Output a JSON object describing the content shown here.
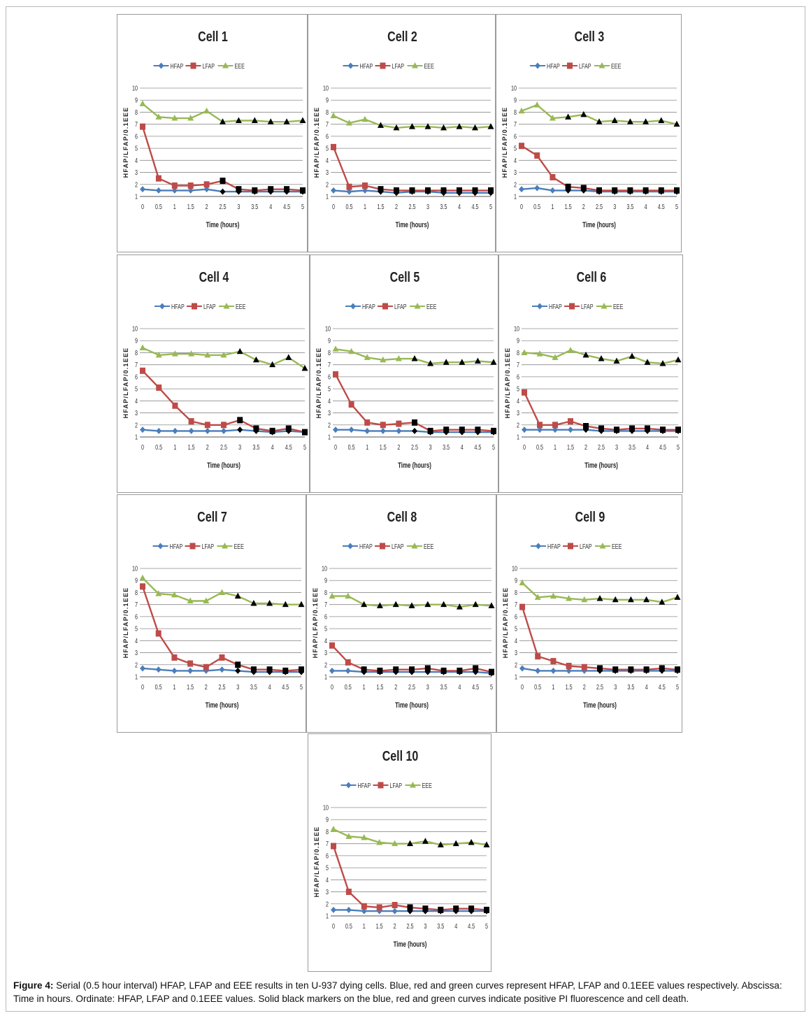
{
  "figure": {
    "caption_label": "Figure 4:",
    "caption_text": " Serial (0.5 hour interval) HFAP, LFAP and EEE results in ten U-937 dying cells. Blue, red and green curves represent HFAP, LFAP and 0.1EEE values respectively. Abscissa: Time in hours. Ordinate: HFAP, LFAP and 0.1EEE values. Solid black markers on the blue, red and green curves indicate positive PI fluorescence and cell death."
  },
  "colors": {
    "hfap": "#4a7ebb",
    "lfap": "#be4b48",
    "eee": "#98b954",
    "death": "#000000",
    "grid": "#8c8c8c"
  },
  "chart_data": [
    {
      "type": "line",
      "title": "Cell 1",
      "xlabel": "Time (hours)",
      "ylabel": "HFAP/LFAP/0.1EEE",
      "x": [
        "0",
        "0.5",
        "1",
        "1.5",
        "2",
        "2.5",
        "3",
        "3.5",
        "4",
        "4.5",
        "5"
      ],
      "ylim": [
        1,
        10
      ],
      "y_ticks": [
        "1",
        "2",
        "3",
        "4",
        "5",
        "6",
        "7",
        "8",
        "9",
        "10"
      ],
      "series": [
        {
          "name": "HFAP",
          "values": [
            1.6,
            1.5,
            1.5,
            1.5,
            1.6,
            1.4,
            1.4,
            1.4,
            1.4,
            1.4,
            1.4
          ]
        },
        {
          "name": "LFAP",
          "values": [
            6.8,
            2.5,
            1.9,
            1.9,
            2.0,
            2.3,
            1.6,
            1.5,
            1.6,
            1.6,
            1.5
          ]
        },
        {
          "name": "EEE",
          "values": [
            8.7,
            7.6,
            7.5,
            7.5,
            8.1,
            7.2,
            7.3,
            7.3,
            7.2,
            7.2,
            7.3
          ]
        }
      ],
      "death_from_index": 5
    },
    {
      "type": "line",
      "title": "Cell 2",
      "xlabel": "Time (hours)",
      "ylabel": "HFAP/LFAP/0.1EEE",
      "x": [
        "0",
        "0.5",
        "1",
        "1.5",
        "2",
        "2.5",
        "3",
        "3.5",
        "4",
        "4.5",
        "5"
      ],
      "ylim": [
        1,
        10
      ],
      "y_ticks": [
        "1",
        "2",
        "3",
        "4",
        "5",
        "6",
        "7",
        "8",
        "9",
        "10"
      ],
      "series": [
        {
          "name": "HFAP",
          "values": [
            1.5,
            1.4,
            1.5,
            1.4,
            1.3,
            1.4,
            1.4,
            1.3,
            1.3,
            1.3,
            1.3
          ]
        },
        {
          "name": "LFAP",
          "values": [
            5.1,
            1.8,
            1.9,
            1.6,
            1.5,
            1.5,
            1.5,
            1.5,
            1.5,
            1.5,
            1.5
          ]
        },
        {
          "name": "EEE",
          "values": [
            7.7,
            7.1,
            7.4,
            6.9,
            6.7,
            6.8,
            6.8,
            6.7,
            6.8,
            6.7,
            6.8
          ]
        }
      ],
      "death_from_index": 3
    },
    {
      "type": "line",
      "title": "Cell 3",
      "xlabel": "Time (hours)",
      "ylabel": "HFAP/LFAP/0.1EEE",
      "x": [
        "0",
        "0.5",
        "1",
        "1.5",
        "2",
        "2.5",
        "3",
        "3.5",
        "4",
        "4.5",
        "5"
      ],
      "ylim": [
        1,
        10
      ],
      "y_ticks": [
        "1",
        "2",
        "3",
        "4",
        "5",
        "6",
        "7",
        "8",
        "9",
        "10"
      ],
      "series": [
        {
          "name": "HFAP",
          "values": [
            1.6,
            1.7,
            1.5,
            1.5,
            1.5,
            1.4,
            1.4,
            1.4,
            1.4,
            1.4,
            1.4
          ]
        },
        {
          "name": "LFAP",
          "values": [
            5.2,
            4.4,
            2.6,
            1.8,
            1.7,
            1.5,
            1.5,
            1.5,
            1.5,
            1.5,
            1.5
          ]
        },
        {
          "name": "EEE",
          "values": [
            8.1,
            8.6,
            7.5,
            7.6,
            7.8,
            7.2,
            7.3,
            7.2,
            7.2,
            7.3,
            7.0
          ]
        }
      ],
      "death_from_index": 3
    },
    {
      "type": "line",
      "title": "Cell 4",
      "xlabel": "Time (hours)",
      "ylabel": "HFAP/LFAP/0.1EEE",
      "x": [
        "0",
        "0.5",
        "1",
        "1.5",
        "2",
        "2.5",
        "3",
        "3.5",
        "4",
        "4.5",
        "5"
      ],
      "ylim": [
        1,
        10
      ],
      "y_ticks": [
        "1",
        "2",
        "3",
        "4",
        "5",
        "6",
        "7",
        "8",
        "9",
        "10"
      ],
      "series": [
        {
          "name": "HFAP",
          "values": [
            1.6,
            1.5,
            1.5,
            1.5,
            1.5,
            1.5,
            1.6,
            1.5,
            1.4,
            1.5,
            1.4
          ]
        },
        {
          "name": "LFAP",
          "values": [
            6.5,
            5.1,
            3.6,
            2.3,
            2.0,
            2.0,
            2.4,
            1.7,
            1.5,
            1.7,
            1.4
          ]
        },
        {
          "name": "EEE",
          "values": [
            8.4,
            7.8,
            7.9,
            7.9,
            7.8,
            7.8,
            8.1,
            7.4,
            7.0,
            7.6,
            6.7
          ]
        }
      ],
      "death_from_index": 6
    },
    {
      "type": "line",
      "title": "Cell 5",
      "xlabel": "Time (hours)",
      "ylabel": "HFAP/LFAP/0.1EEE",
      "x": [
        "0",
        "0.5",
        "1",
        "1.5",
        "2",
        "2.5",
        "3",
        "3.5",
        "4",
        "4.5",
        "5"
      ],
      "ylim": [
        1,
        10
      ],
      "y_ticks": [
        "1",
        "2",
        "3",
        "4",
        "5",
        "6",
        "7",
        "8",
        "9",
        "10"
      ],
      "series": [
        {
          "name": "HFAP",
          "values": [
            1.6,
            1.6,
            1.5,
            1.5,
            1.5,
            1.5,
            1.4,
            1.4,
            1.4,
            1.4,
            1.4
          ]
        },
        {
          "name": "LFAP",
          "values": [
            6.2,
            3.7,
            2.2,
            2.0,
            2.1,
            2.2,
            1.5,
            1.6,
            1.6,
            1.6,
            1.5
          ]
        },
        {
          "name": "EEE",
          "values": [
            8.3,
            8.1,
            7.6,
            7.4,
            7.5,
            7.5,
            7.1,
            7.2,
            7.2,
            7.3,
            7.2
          ]
        }
      ],
      "death_from_index": 5
    },
    {
      "type": "line",
      "title": "Cell 6",
      "xlabel": "Time (hours)",
      "ylabel": "HFAP/LFAP/0.1EEE",
      "x": [
        "0",
        "0.5",
        "1",
        "1.5",
        "2",
        "2.5",
        "3",
        "3.5",
        "4",
        "4.5",
        "5"
      ],
      "ylim": [
        1,
        10
      ],
      "y_ticks": [
        "1",
        "2",
        "3",
        "4",
        "5",
        "6",
        "7",
        "8",
        "9",
        "10"
      ],
      "series": [
        {
          "name": "HFAP",
          "values": [
            1.6,
            1.6,
            1.6,
            1.6,
            1.6,
            1.5,
            1.5,
            1.5,
            1.5,
            1.5,
            1.5
          ]
        },
        {
          "name": "LFAP",
          "values": [
            4.7,
            2.0,
            2.0,
            2.3,
            1.9,
            1.7,
            1.6,
            1.7,
            1.7,
            1.6,
            1.6
          ]
        },
        {
          "name": "EEE",
          "values": [
            8.0,
            7.9,
            7.6,
            8.2,
            7.8,
            7.5,
            7.3,
            7.7,
            7.2,
            7.1,
            7.4
          ]
        }
      ],
      "death_from_index": 4
    },
    {
      "type": "line",
      "title": "Cell 7",
      "xlabel": "Time (hours)",
      "ylabel": "HFAP/LFAP/0.1EEE",
      "x": [
        "0",
        "0.5",
        "1",
        "1.5",
        "2",
        "2.5",
        "3",
        "3.5",
        "4",
        "4.5",
        "5"
      ],
      "ylim": [
        1,
        10
      ],
      "y_ticks": [
        "1",
        "2",
        "3",
        "4",
        "5",
        "6",
        "7",
        "8",
        "9",
        "10"
      ],
      "series": [
        {
          "name": "HFAP",
          "values": [
            1.7,
            1.6,
            1.5,
            1.5,
            1.5,
            1.6,
            1.5,
            1.4,
            1.4,
            1.4,
            1.4
          ]
        },
        {
          "name": "LFAP",
          "values": [
            8.5,
            4.6,
            2.6,
            2.1,
            1.8,
            2.6,
            2.0,
            1.6,
            1.6,
            1.5,
            1.6
          ]
        },
        {
          "name": "EEE",
          "values": [
            9.2,
            7.9,
            7.8,
            7.3,
            7.3,
            8.0,
            7.7,
            7.1,
            7.1,
            7.0,
            7.0
          ]
        }
      ],
      "death_from_index": 6
    },
    {
      "type": "line",
      "title": "Cell 8",
      "xlabel": "Time (hours)",
      "ylabel": "HFAP/LFAP/0.1EEE",
      "x": [
        "0",
        "0.5",
        "1",
        "1.5",
        "2",
        "2.5",
        "3",
        "3.5",
        "4",
        "4.5",
        "5"
      ],
      "ylim": [
        1,
        10
      ],
      "y_ticks": [
        "1",
        "2",
        "3",
        "4",
        "5",
        "6",
        "7",
        "8",
        "9",
        "10"
      ],
      "series": [
        {
          "name": "HFAP",
          "values": [
            1.5,
            1.5,
            1.4,
            1.4,
            1.4,
            1.4,
            1.4,
            1.4,
            1.4,
            1.4,
            1.3
          ]
        },
        {
          "name": "LFAP",
          "values": [
            3.6,
            2.2,
            1.6,
            1.5,
            1.6,
            1.6,
            1.7,
            1.5,
            1.5,
            1.7,
            1.4
          ]
        },
        {
          "name": "EEE",
          "values": [
            7.7,
            7.7,
            7.0,
            6.9,
            7.0,
            6.9,
            7.0,
            7.0,
            6.8,
            7.0,
            6.9
          ]
        }
      ],
      "death_from_index": 2
    },
    {
      "type": "line",
      "title": "Cell 9",
      "xlabel": "Time (hours)",
      "ylabel": "HFAP/LFAP/0.1EEE",
      "x": [
        "0",
        "0.5",
        "1",
        "1.5",
        "2",
        "2.5",
        "3",
        "3.5",
        "4",
        "4.5",
        "5"
      ],
      "ylim": [
        1,
        10
      ],
      "y_ticks": [
        "1",
        "2",
        "3",
        "4",
        "5",
        "6",
        "7",
        "8",
        "9",
        "10"
      ],
      "series": [
        {
          "name": "HFAP",
          "values": [
            1.7,
            1.5,
            1.5,
            1.5,
            1.5,
            1.5,
            1.5,
            1.5,
            1.5,
            1.5,
            1.5
          ]
        },
        {
          "name": "LFAP",
          "values": [
            6.8,
            2.7,
            2.3,
            1.9,
            1.8,
            1.7,
            1.6,
            1.6,
            1.6,
            1.7,
            1.6
          ]
        },
        {
          "name": "EEE",
          "values": [
            8.8,
            7.6,
            7.7,
            7.5,
            7.4,
            7.5,
            7.4,
            7.4,
            7.4,
            7.2,
            7.6
          ]
        }
      ],
      "death_from_index": 5
    },
    {
      "type": "line",
      "title": "Cell 10",
      "xlabel": "Time (hours)",
      "ylabel": "HFAP/LFAP/0.1EEE",
      "x": [
        "0",
        "0.5",
        "1",
        "1.5",
        "2",
        "2.5",
        "3",
        "3.5",
        "4",
        "4.5",
        "5"
      ],
      "ylim": [
        1,
        10
      ],
      "y_ticks": [
        "1",
        "2",
        "3",
        "4",
        "5",
        "6",
        "7",
        "8",
        "9",
        "10"
      ],
      "series": [
        {
          "name": "HFAP",
          "values": [
            1.5,
            1.5,
            1.4,
            1.4,
            1.4,
            1.4,
            1.4,
            1.4,
            1.4,
            1.4,
            1.4
          ]
        },
        {
          "name": "LFAP",
          "values": [
            6.8,
            3.0,
            1.8,
            1.7,
            1.9,
            1.7,
            1.6,
            1.5,
            1.6,
            1.6,
            1.5
          ]
        },
        {
          "name": "EEE",
          "values": [
            8.2,
            7.6,
            7.5,
            7.1,
            7.0,
            7.0,
            7.2,
            6.9,
            7.0,
            7.1,
            6.9
          ]
        }
      ],
      "death_from_index": 5
    }
  ]
}
